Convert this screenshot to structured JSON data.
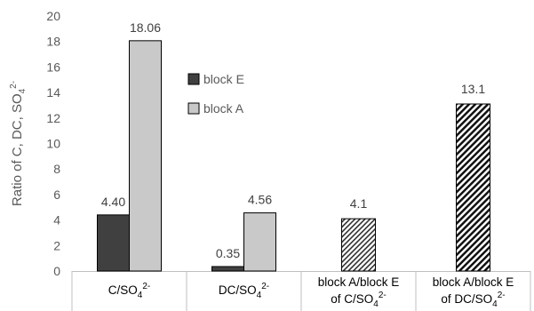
{
  "chart_data": {
    "type": "bar",
    "ylabel": {
      "base": "Ratio of C, DC, SO",
      "sub": "4",
      "sup": "2-"
    },
    "ylim": [
      0,
      20
    ],
    "yticks": [
      0,
      2,
      4,
      6,
      8,
      10,
      12,
      14,
      16,
      18,
      20
    ],
    "categories": [
      {
        "lines": [
          {
            "base": "C/SO",
            "sub": "4",
            "sup": "2-"
          }
        ]
      },
      {
        "lines": [
          {
            "base": "DC/SO",
            "sub": "4",
            "sup": "2-"
          }
        ]
      },
      {
        "lines": [
          {
            "base": "block A/block E"
          },
          {
            "base": "of C/SO",
            "sub": "4",
            "sup": "2-"
          }
        ]
      },
      {
        "lines": [
          {
            "base": "block A/block E"
          },
          {
            "base": "of DC/SO",
            "sub": "4",
            "sup": "2-"
          }
        ]
      }
    ],
    "series": [
      {
        "name": "block E",
        "color": "#404040",
        "values": [
          4.4,
          0.35,
          null,
          null
        ],
        "labels": [
          "4.40",
          "0.35",
          null,
          null
        ]
      },
      {
        "name": "block A",
        "color": "#c9c9c9",
        "values": [
          18.06,
          4.56,
          null,
          null
        ],
        "labels": [
          "18.06",
          "4.56",
          null,
          null
        ]
      }
    ],
    "ratio_bars": [
      {
        "category_index": 2,
        "value": 4.1,
        "label": "4.1",
        "pattern": "diagonal-hatch-light"
      },
      {
        "category_index": 3,
        "value": 13.1,
        "label": "13.1",
        "pattern": "diagonal-hatch-dense"
      }
    ],
    "legend": {
      "position": "inside-upper-left",
      "entries": [
        "block E",
        "block A"
      ]
    },
    "grid": false
  }
}
